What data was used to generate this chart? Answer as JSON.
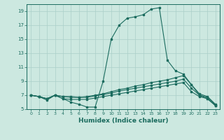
{
  "xlabel": "Humidex (Indice chaleur)",
  "ylabel": "",
  "xlim": [
    -0.5,
    23.5
  ],
  "ylim": [
    5,
    20
  ],
  "yticks": [
    5,
    7,
    9,
    11,
    13,
    15,
    17,
    19
  ],
  "xticks": [
    0,
    1,
    2,
    3,
    4,
    5,
    6,
    7,
    8,
    9,
    10,
    11,
    12,
    13,
    14,
    15,
    16,
    17,
    18,
    19,
    20,
    21,
    22,
    23
  ],
  "bg_color": "#cce8e0",
  "line_color": "#1a6b5e",
  "grid_color": "#aacfc8",
  "lines": [
    [
      7.0,
      6.8,
      6.3,
      7.0,
      6.5,
      6.0,
      5.7,
      5.3,
      5.3,
      9.0,
      15.0,
      17.0,
      18.0,
      18.2,
      18.5,
      19.3,
      19.5,
      12.0,
      10.5,
      10.0,
      8.5,
      7.0,
      6.5,
      5.5
    ],
    [
      7.0,
      6.8,
      6.5,
      7.0,
      6.8,
      6.8,
      6.7,
      6.8,
      7.0,
      7.2,
      7.5,
      7.8,
      8.0,
      8.3,
      8.5,
      8.8,
      9.0,
      9.2,
      9.5,
      9.8,
      8.5,
      7.2,
      6.8,
      5.7
    ],
    [
      7.0,
      6.8,
      6.5,
      7.0,
      6.8,
      6.7,
      6.7,
      6.7,
      6.9,
      7.1,
      7.3,
      7.6,
      7.8,
      8.0,
      8.2,
      8.4,
      8.6,
      8.8,
      9.0,
      9.3,
      8.0,
      7.0,
      6.7,
      5.6
    ],
    [
      7.0,
      6.8,
      6.5,
      7.0,
      6.5,
      6.4,
      6.4,
      6.4,
      6.6,
      6.8,
      7.0,
      7.2,
      7.4,
      7.6,
      7.8,
      8.0,
      8.2,
      8.4,
      8.6,
      8.8,
      7.5,
      6.8,
      6.5,
      5.5
    ]
  ]
}
